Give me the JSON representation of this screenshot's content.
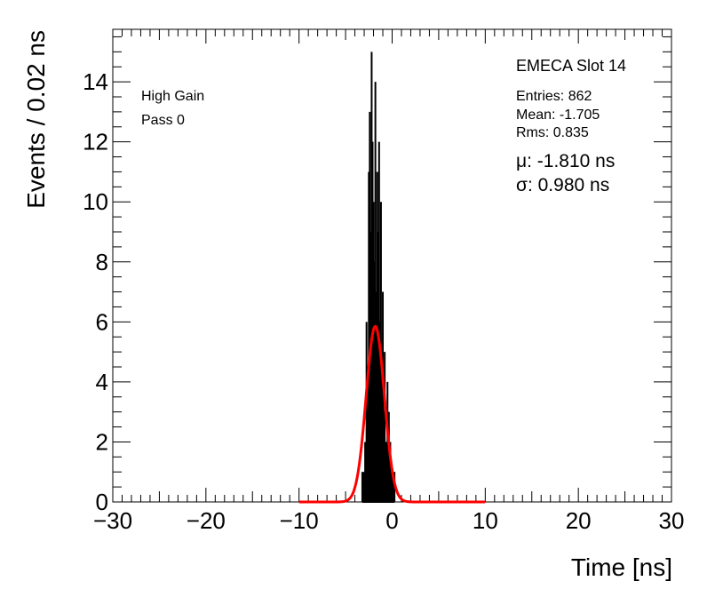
{
  "chart_data": {
    "type": "bar",
    "xlabel": "Time [ns]",
    "ylabel": "Events / 0.02 ns",
    "xlim": [
      -30,
      30
    ],
    "ylim": [
      0,
      15.75
    ],
    "xticks": [
      -30,
      -20,
      -10,
      0,
      10,
      20,
      30
    ],
    "yticks": [
      0,
      2,
      4,
      6,
      8,
      10,
      12,
      14
    ],
    "xtick_labels": [
      "−30",
      "−20",
      "−10",
      "0",
      "10",
      "20",
      "30"
    ],
    "ytick_labels": [
      "0",
      "2",
      "4",
      "6",
      "8",
      "10",
      "12",
      "14"
    ],
    "bin_width": 0.02,
    "series": [
      {
        "type": "histogram",
        "color": "#000000",
        "x": [
          -3.2,
          -3.05,
          -2.9,
          -2.75,
          -2.6,
          -2.5,
          -2.4,
          -2.3,
          -2.2,
          -2.1,
          -2.0,
          -1.9,
          -1.8,
          -1.7,
          -1.6,
          -1.5,
          -1.4,
          -1.3,
          -1.2,
          -1.1,
          -1.0,
          -0.9,
          -0.8,
          -0.65,
          -0.5,
          -0.35,
          -0.2,
          -0.05,
          0.1,
          0.25
        ],
        "values": [
          1,
          1,
          2,
          6,
          4,
          11,
          13,
          9,
          15,
          12,
          10,
          8,
          14,
          7,
          11,
          9,
          12,
          6,
          10,
          4,
          7,
          3,
          5,
          2,
          4,
          3,
          2,
          1,
          1,
          1
        ]
      },
      {
        "type": "gaussian-fit",
        "color": "#ff0000",
        "amplitude": 5.85,
        "mean": -1.81,
        "sigma": 0.98,
        "xrange": [
          -10,
          10
        ]
      }
    ]
  },
  "stats": {
    "title": "EMECA Slot 14",
    "entries": "Entries: 862",
    "mean": "Mean: -1.705",
    "rms": "Rms: 0.835",
    "mu": "μ: -1.810 ns",
    "sigma": "σ: 0.980 ns"
  },
  "labels": {
    "gain": "High Gain",
    "pass": "Pass 0"
  }
}
